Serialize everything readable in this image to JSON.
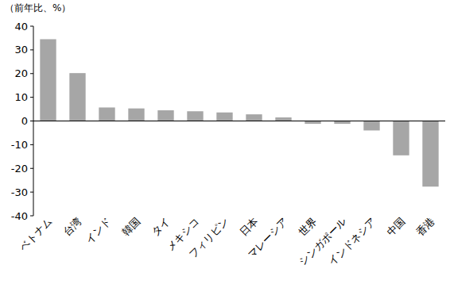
{
  "chart_data": {
    "type": "bar",
    "y_label": "（前年比、%）",
    "categories": [
      "ベトナム",
      "台湾",
      "インド",
      "韓国",
      "タイ",
      "メキシコ",
      "フィリピン",
      "日本",
      "マレーシア",
      "世界",
      "シンガポール",
      "インドネシア",
      "中国",
      "香港"
    ],
    "values": [
      34.5,
      20.2,
      5.7,
      5.3,
      4.5,
      4.1,
      3.6,
      2.8,
      1.5,
      -1.2,
      -1.2,
      -4.0,
      -14.5,
      -27.7
    ],
    "color": "#a6a6a6",
    "ylim": [
      -40,
      40
    ],
    "yticks": [
      -40,
      -30,
      -20,
      -10,
      0,
      10,
      20,
      30,
      40
    ],
    "grid": false
  }
}
